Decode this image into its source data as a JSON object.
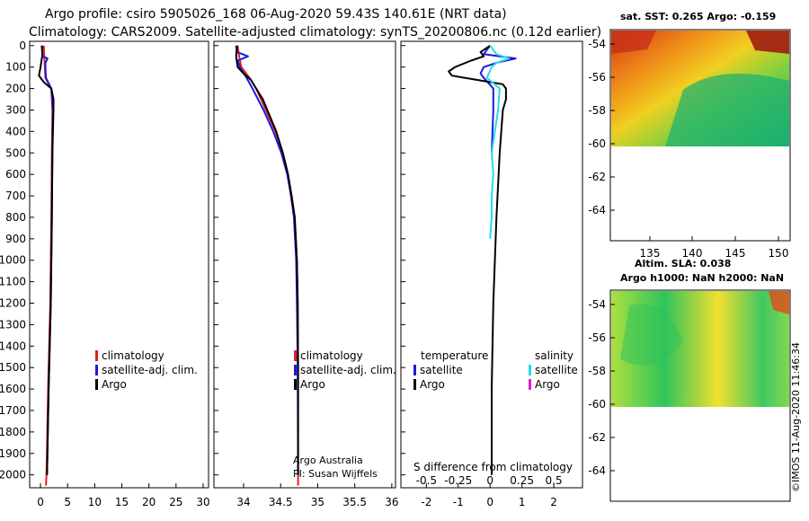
{
  "header": {
    "line1": "Argo profile: csiro 5905026_168 06-Aug-2020 59.43S 140.61E (NRT data)",
    "line2": "Climatology: CARS2009. Satellite-adjusted climatology: synTS_20200806.nc (0.12d earlier)"
  },
  "colors": {
    "climatology": "#e02020",
    "satellite": "#1a1adc",
    "argo": "#000000",
    "temp_satellite": "#1a1adc",
    "sal_satellite": "#22dde8",
    "sal_argo": "#e020d0"
  },
  "chart_data": [
    {
      "type": "line",
      "name": "temperature-profile",
      "xlabel": "",
      "ylabel": "Depth",
      "xlim": [
        -2,
        31
      ],
      "ylim": [
        2060,
        -20
      ],
      "xticks": [
        "0",
        "5",
        "10",
        "15",
        "20",
        "25",
        "30"
      ],
      "xtick_values": [
        0,
        5,
        10,
        15,
        20,
        25,
        30
      ],
      "yticks": [
        "0",
        "100",
        "200",
        "300",
        "400",
        "500",
        "600",
        "700",
        "800",
        "900",
        "1000",
        "1100",
        "1200",
        "1300",
        "1400",
        "1500",
        "1600",
        "1700",
        "1800",
        "1900",
        "2000"
      ],
      "ytick_values": [
        0,
        100,
        200,
        300,
        400,
        500,
        600,
        700,
        800,
        900,
        1000,
        1100,
        1200,
        1300,
        1400,
        1500,
        1600,
        1700,
        1800,
        1900,
        2000
      ],
      "legend": [
        "climatology",
        "satellite-adj. clim.",
        "Argo"
      ],
      "series": [
        {
          "name": "climatology",
          "color_key": "climatology",
          "depth": [
            0,
            50,
            100,
            150,
            200,
            300,
            500,
            800,
            1200,
            1600,
            2000,
            2050
          ],
          "values": [
            0.6,
            0.7,
            0.8,
            0.9,
            2.0,
            2.2,
            2.1,
            2.0,
            1.8,
            1.4,
            1.1,
            1.0
          ]
        },
        {
          "name": "satellite-adj. clim.",
          "color_key": "satellite",
          "depth": [
            0,
            50,
            60,
            80,
            100,
            150,
            200,
            300,
            500,
            800,
            1200,
            1600,
            2000
          ],
          "values": [
            0.2,
            0.4,
            1.3,
            0.9,
            0.9,
            1.0,
            2.0,
            2.3,
            2.2,
            2.1,
            1.9,
            1.5,
            1.2
          ]
        },
        {
          "name": "Argo",
          "color_key": "argo",
          "depth": [
            0,
            50,
            100,
            140,
            170,
            200,
            250,
            300,
            400,
            500,
            800,
            1200,
            1600,
            2000
          ],
          "values": [
            0.3,
            0.3,
            0.0,
            -0.3,
            0.6,
            2.0,
            2.4,
            2.4,
            2.3,
            2.2,
            2.1,
            1.9,
            1.5,
            1.2
          ]
        }
      ]
    },
    {
      "type": "line",
      "name": "salinity-profile",
      "xlim": [
        33.6,
        36.05
      ],
      "ylim": [
        2060,
        -20
      ],
      "xticks": [
        "34",
        "34.5",
        "35",
        "35.5",
        "36"
      ],
      "xtick_values": [
        34,
        34.5,
        35,
        35.5,
        36
      ],
      "legend": [
        "climatology",
        "satellite-adj. clim.",
        "Argo"
      ],
      "series": [
        {
          "name": "climatology",
          "color_key": "climatology",
          "depth": [
            0,
            50,
            100,
            150,
            200,
            300,
            400,
            500,
            600,
            700,
            800,
            1000,
            1200,
            1500,
            2000,
            2050
          ],
          "values": [
            33.92,
            33.94,
            33.97,
            34.08,
            34.17,
            34.3,
            34.43,
            34.53,
            34.6,
            34.65,
            34.69,
            34.72,
            34.73,
            34.735,
            34.735,
            34.735
          ]
        },
        {
          "name": "satellite-adj. clim.",
          "color_key": "satellite",
          "depth": [
            0,
            30,
            50,
            70,
            100,
            150,
            200,
            300,
            400,
            500,
            600,
            700,
            800,
            1000,
            1200,
            1500,
            2000
          ],
          "values": [
            33.9,
            33.91,
            34.06,
            33.92,
            33.95,
            34.04,
            34.12,
            34.27,
            34.4,
            34.51,
            34.59,
            34.64,
            34.68,
            34.71,
            34.72,
            34.73,
            34.735
          ]
        },
        {
          "name": "Argo",
          "color_key": "argo",
          "depth": [
            0,
            50,
            100,
            130,
            160,
            200,
            250,
            300,
            400,
            500,
            600,
            800,
            1000,
            1200,
            1500,
            2000
          ],
          "values": [
            33.91,
            33.9,
            33.92,
            34.0,
            34.1,
            34.17,
            34.26,
            34.32,
            34.44,
            34.53,
            34.6,
            34.69,
            34.72,
            34.73,
            34.735,
            34.735
          ]
        }
      ],
      "annotation": [
        "Argo Australia",
        "PI: Susan Wijffels"
      ]
    },
    {
      "type": "line",
      "name": "difference-profile",
      "xlim": [
        -2.8,
        2.9
      ],
      "ylim": [
        2060,
        -20
      ],
      "xticks": [
        "-2",
        "-1",
        "0",
        "1",
        "2"
      ],
      "xtick_values": [
        -2,
        -1,
        0,
        1,
        2
      ],
      "sal_ticks": [
        "-0.5",
        "-0.25",
        "0",
        "0.25",
        "0.5"
      ],
      "sal_tick_positions": [
        -2,
        -1,
        0,
        1,
        2
      ],
      "xlabel_top": "S difference from climatology",
      "legend_temperature_title": "temperature",
      "legend_salinity_title": "salinity",
      "legend_items": [
        "satellite",
        "Argo",
        "satellite",
        "Argo"
      ],
      "series": [
        {
          "name": "temperature satellite",
          "color_key": "temp_satellite",
          "depth": [
            0,
            40,
            60,
            80,
            100,
            130,
            150,
            200,
            300,
            500
          ],
          "values": [
            0.0,
            -0.2,
            0.8,
            0.2,
            -0.2,
            -0.3,
            -0.2,
            0.1,
            0.1,
            0.05
          ]
        },
        {
          "name": "temperature Argo",
          "color_key": "argo",
          "depth": [
            0,
            30,
            50,
            70,
            100,
            120,
            140,
            160,
            180,
            200,
            250,
            300,
            500,
            800,
            1200,
            1600,
            2000
          ],
          "values": [
            0.0,
            -0.3,
            -0.2,
            -0.6,
            -1.1,
            -1.3,
            -1.2,
            -0.4,
            0.4,
            0.5,
            0.5,
            0.4,
            0.3,
            0.2,
            0.1,
            0.05,
            0.05
          ]
        },
        {
          "name": "salinity satellite",
          "color_key": "sal_satellite",
          "depth": [
            0,
            40,
            60,
            80,
            100,
            150,
            200,
            300,
            400,
            500,
            600,
            700,
            800,
            900
          ],
          "values": [
            0.0,
            0.2,
            0.6,
            0.2,
            0.05,
            -0.1,
            0.3,
            0.25,
            0.15,
            0.05,
            0.1,
            0.05,
            0.05,
            0.0
          ]
        }
      ]
    }
  ],
  "maps": {
    "top": {
      "title": "sat. SST: 0.265 Argo: -0.159",
      "yticks": [
        "-54",
        "-56",
        "-58",
        "-60",
        "-62",
        "-64"
      ],
      "xticks": [
        "135",
        "140",
        "145",
        "150"
      ]
    },
    "bottom": {
      "title1": "Altim. SLA: 0.038",
      "title2": "Argo h1000: NaN h2000: NaN",
      "yticks": [
        "-54",
        "-56",
        "-58",
        "-60",
        "-62",
        "-64"
      ]
    }
  },
  "watermark": "©IMOS 11-Aug-2020 11:46:34"
}
